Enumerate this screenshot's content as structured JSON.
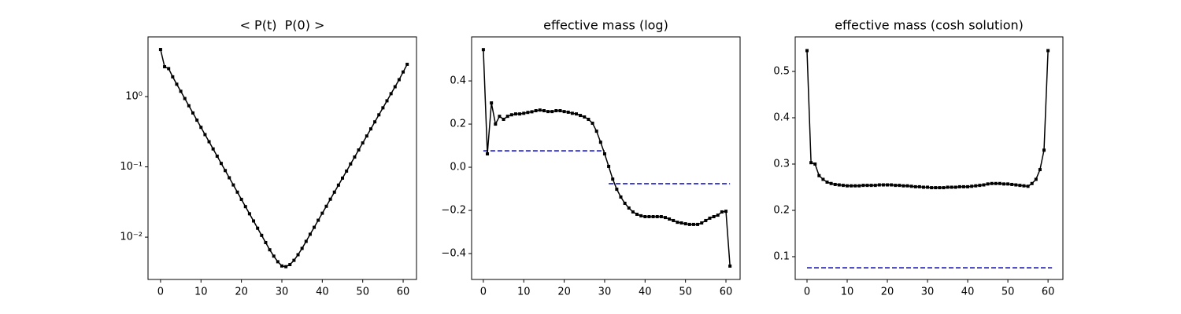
{
  "chart_data": [
    {
      "type": "line",
      "title": "< P(t)  P(0) >",
      "yscale": "log",
      "x": [
        0,
        1,
        2,
        3,
        4,
        5,
        6,
        7,
        8,
        9,
        10,
        11,
        12,
        13,
        14,
        15,
        16,
        17,
        18,
        19,
        20,
        21,
        22,
        23,
        24,
        25,
        26,
        27,
        28,
        29,
        30,
        31,
        32,
        33,
        34,
        35,
        36,
        37,
        38,
        39,
        40,
        41,
        42,
        43,
        44,
        45,
        46,
        47,
        48,
        49,
        50,
        51,
        52,
        53,
        54,
        55,
        56,
        57,
        58,
        59,
        60,
        61
      ],
      "series": [
        {
          "color": "#000000",
          "values": [
            4.68,
            2.66,
            2.5,
            1.91,
            1.5,
            1.19,
            0.939,
            0.741,
            0.585,
            0.462,
            0.365,
            0.288,
            0.228,
            0.18,
            0.142,
            0.112,
            0.0886,
            0.07,
            0.0553,
            0.0437,
            0.0345,
            0.0272,
            0.0215,
            0.017,
            0.0134,
            0.0106,
            0.00837,
            0.00661,
            0.00537,
            0.00447,
            0.00389,
            0.0038,
            0.00407,
            0.00468,
            0.00562,
            0.00692,
            0.00871,
            0.011,
            0.0138,
            0.0174,
            0.0219,
            0.0275,
            0.0347,
            0.0437,
            0.055,
            0.0692,
            0.0871,
            0.11,
            0.138,
            0.174,
            0.219,
            0.275,
            0.347,
            0.437,
            0.55,
            0.692,
            0.871,
            1.1,
            1.38,
            1.74,
            2.24,
            2.88
          ]
        }
      ],
      "xlim": [
        -3.1,
        63.3
      ],
      "ylim": [
        0.0025,
        7.07
      ],
      "xticks": [
        0,
        10,
        20,
        30,
        40,
        50,
        60
      ],
      "yticks": [
        {
          "value": 0.01,
          "label": "10⁻²"
        },
        {
          "value": 0.1,
          "label": "10⁻¹"
        },
        {
          "value": 1,
          "label": "10⁰"
        }
      ]
    },
    {
      "type": "line",
      "title": "effective mass (log)",
      "x": [
        0,
        1,
        2,
        3,
        4,
        5,
        6,
        7,
        8,
        9,
        10,
        11,
        12,
        13,
        14,
        15,
        16,
        17,
        18,
        19,
        20,
        21,
        22,
        23,
        24,
        25,
        26,
        27,
        28,
        29,
        30,
        31,
        32,
        33,
        34,
        35,
        36,
        37,
        38,
        39,
        40,
        41,
        42,
        43,
        44,
        45,
        46,
        47,
        48,
        49,
        50,
        51,
        52,
        53,
        54,
        55,
        56,
        57,
        58,
        59,
        60,
        61
      ],
      "series": [
        {
          "color": "#000000",
          "values": [
            0.545,
            0.062,
            0.298,
            0.2,
            0.236,
            0.222,
            0.236,
            0.243,
            0.247,
            0.247,
            0.25,
            0.254,
            0.257,
            0.262,
            0.265,
            0.262,
            0.258,
            0.258,
            0.262,
            0.262,
            0.258,
            0.255,
            0.25,
            0.247,
            0.24,
            0.233,
            0.222,
            0.204,
            0.167,
            0.116,
            0.062,
            0.004,
            -0.055,
            -0.102,
            -0.138,
            -0.167,
            -0.189,
            -0.207,
            -0.218,
            -0.225,
            -0.229,
            -0.229,
            -0.229,
            -0.229,
            -0.229,
            -0.233,
            -0.24,
            -0.247,
            -0.255,
            -0.258,
            -0.262,
            -0.265,
            -0.265,
            -0.265,
            -0.258,
            -0.247,
            -0.236,
            -0.229,
            -0.222,
            -0.207,
            -0.204,
            -0.458
          ]
        }
      ],
      "lines": [
        {
          "color": "#0000cc",
          "x": [
            0,
            30
          ],
          "values": [
            0.076,
            0.076
          ]
        },
        {
          "color": "#0000cc",
          "x": [
            31,
            61
          ],
          "values": [
            -0.076,
            -0.076
          ]
        }
      ],
      "xlim": [
        -2.9,
        63.5
      ],
      "ylim": [
        -0.52,
        0.604
      ],
      "xticks": [
        0,
        10,
        20,
        30,
        40,
        50,
        60
      ],
      "yticks": [
        {
          "value": -0.4,
          "label": "−0.4"
        },
        {
          "value": -0.2,
          "label": "−0.2"
        },
        {
          "value": 0,
          "label": "0.0"
        },
        0.2,
        0.4
      ]
    },
    {
      "type": "line",
      "title": "effective mass (cosh solution)",
      "x": [
        0,
        1,
        2,
        3,
        4,
        5,
        6,
        7,
        8,
        9,
        10,
        11,
        12,
        13,
        14,
        15,
        16,
        17,
        18,
        19,
        20,
        21,
        22,
        23,
        24,
        25,
        26,
        27,
        28,
        29,
        30,
        31,
        32,
        33,
        34,
        35,
        36,
        37,
        38,
        39,
        40,
        41,
        42,
        43,
        44,
        45,
        46,
        47,
        48,
        49,
        50,
        51,
        52,
        53,
        54,
        55,
        56,
        57,
        58,
        59,
        60
      ],
      "series": [
        {
          "color": "#000000",
          "values": [
            0.545,
            0.303,
            0.3,
            0.275,
            0.267,
            0.261,
            0.258,
            0.256,
            0.255,
            0.254,
            0.253,
            0.253,
            0.253,
            0.253,
            0.254,
            0.254,
            0.254,
            0.254,
            0.255,
            0.255,
            0.255,
            0.255,
            0.254,
            0.254,
            0.253,
            0.253,
            0.252,
            0.251,
            0.251,
            0.25,
            0.25,
            0.249,
            0.249,
            0.249,
            0.249,
            0.25,
            0.25,
            0.25,
            0.251,
            0.251,
            0.251,
            0.252,
            0.253,
            0.254,
            0.255,
            0.257,
            0.258,
            0.258,
            0.258,
            0.257,
            0.257,
            0.256,
            0.255,
            0.254,
            0.253,
            0.252,
            0.258,
            0.267,
            0.288,
            0.33,
            0.545
          ]
        }
      ],
      "lines": [
        {
          "color": "#0000cc",
          "x": [
            0,
            61
          ],
          "values": [
            0.076,
            0.076
          ]
        }
      ],
      "xlim": [
        -2.94,
        63.7
      ],
      "ylim": [
        0.0508,
        0.5746
      ],
      "xticks": [
        0,
        10,
        20,
        30,
        40,
        50,
        60
      ],
      "yticks": [
        0.1,
        0.2,
        0.3,
        0.4,
        0.5
      ]
    }
  ]
}
